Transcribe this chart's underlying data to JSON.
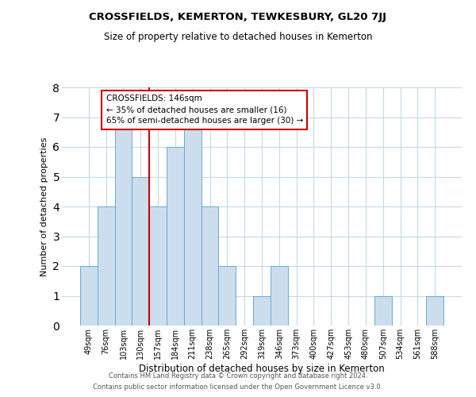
{
  "title": "CROSSFIELDS, KEMERTON, TEWKESBURY, GL20 7JJ",
  "subtitle": "Size of property relative to detached houses in Kemerton",
  "xlabel": "Distribution of detached houses by size in Kemerton",
  "ylabel": "Number of detached properties",
  "bar_labels": [
    "49sqm",
    "76sqm",
    "103sqm",
    "130sqm",
    "157sqm",
    "184sqm",
    "211sqm",
    "238sqm",
    "265sqm",
    "292sqm",
    "319sqm",
    "346sqm",
    "373sqm",
    "400sqm",
    "427sqm",
    "453sqm",
    "480sqm",
    "507sqm",
    "534sqm",
    "561sqm",
    "588sqm"
  ],
  "bar_values": [
    2,
    4,
    7,
    5,
    4,
    6,
    7,
    4,
    2,
    0,
    1,
    2,
    0,
    0,
    0,
    0,
    0,
    1,
    0,
    0,
    1
  ],
  "bar_color": "#ccdded",
  "bar_edgecolor": "#6aaad4",
  "grid_color": "#c5d8e8",
  "annotation_text": "CROSSFIELDS: 146sqm\n← 35% of detached houses are smaller (16)\n65% of semi-detached houses are larger (30) →",
  "annotation_box_edgecolor": "#cc0000",
  "annotation_line_color": "#cc0000",
  "property_line_x": 3.5,
  "ylim": [
    0,
    8
  ],
  "yticks": [
    0,
    1,
    2,
    3,
    4,
    5,
    6,
    7,
    8
  ],
  "footer_line1": "Contains HM Land Registry data © Crown copyright and database right 2024.",
  "footer_line2": "Contains public sector information licensed under the Open Government Licence v3.0."
}
